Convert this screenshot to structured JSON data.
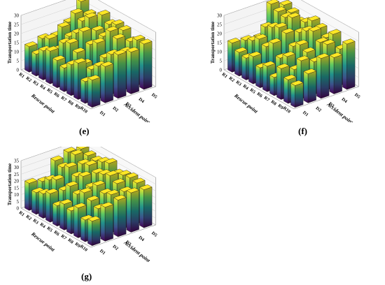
{
  "captions": [
    "(e)",
    "(f)",
    "(g)"
  ],
  "chart_data": [
    {
      "type": "bar3d",
      "panel": "e",
      "zlabel": "Transportation time",
      "xlabel": "Rescue point",
      "ylabel": "Accident point",
      "rescue_points": [
        "R1",
        "R2",
        "R3",
        "R4",
        "R5",
        "R6",
        "R7",
        "R8",
        "R9",
        "R10"
      ],
      "accident_points": [
        "D1",
        "D2",
        "D3",
        "D4",
        "D5"
      ],
      "zticks": [
        0,
        5,
        10,
        15,
        20,
        25,
        30
      ],
      "zlim": [
        0,
        30
      ],
      "values": [
        [
          14,
          16,
          15,
          20,
          29
        ],
        [
          12,
          18,
          22,
          27,
          24
        ],
        [
          16,
          14,
          19,
          25,
          22
        ],
        [
          18,
          20,
          23,
          29,
          28
        ],
        [
          15,
          22,
          26,
          24,
          25
        ],
        [
          13,
          19,
          21,
          23,
          27
        ],
        [
          17,
          15,
          24,
          28,
          26
        ],
        [
          20,
          14,
          18,
          26,
          22
        ],
        [
          12,
          18,
          22,
          21,
          25
        ],
        [
          15,
          20,
          24,
          23,
          25
        ]
      ],
      "colormap": [
        "#440154",
        "#3b528b",
        "#21918c",
        "#5ec962",
        "#fde725"
      ]
    },
    {
      "type": "bar3d",
      "panel": "f",
      "zlabel": "Transportation time",
      "xlabel": "Rescue point",
      "ylabel": "Accident point",
      "rescue_points": [
        "R1",
        "R2",
        "R3",
        "R4",
        "R5",
        "R6",
        "R7",
        "R8",
        "R9",
        "R10"
      ],
      "accident_points": [
        "D1",
        "D2",
        "D3",
        "D4",
        "D5"
      ],
      "zticks": [
        0,
        5,
        10,
        15,
        20,
        25,
        30
      ],
      "zlim": [
        0,
        30
      ],
      "values": [
        [
          16,
          15,
          14,
          30,
          27
        ],
        [
          13,
          17,
          22,
          28,
          25
        ],
        [
          12,
          20,
          24,
          27,
          22
        ],
        [
          15,
          18,
          26,
          29,
          24
        ],
        [
          11,
          22,
          25,
          23,
          27
        ],
        [
          14,
          16,
          20,
          26,
          25
        ],
        [
          10,
          19,
          23,
          28,
          22
        ],
        [
          17,
          14,
          21,
          24,
          26
        ],
        [
          13,
          21,
          18,
          25,
          20
        ],
        [
          12,
          16,
          22,
          20,
          25
        ]
      ],
      "colormap": [
        "#440154",
        "#3b528b",
        "#21918c",
        "#5ec962",
        "#fde725"
      ]
    },
    {
      "type": "bar3d",
      "panel": "g",
      "zlabel": "Transportation time",
      "xlabel": "Rescue point",
      "ylabel": "Accident point",
      "rescue_points": [
        "R1",
        "R2",
        "R3",
        "R4",
        "R5",
        "R6",
        "R7",
        "R8",
        "R9",
        "R10"
      ],
      "accident_points": [
        "D1",
        "D2",
        "D3",
        "D4",
        "D5"
      ],
      "zticks": [
        0,
        5,
        10,
        15,
        20,
        25,
        30,
        35
      ],
      "zlim": [
        0,
        35
      ],
      "values": [
        [
          20,
          18,
          30,
          33,
          32
        ],
        [
          16,
          22,
          28,
          34,
          30
        ],
        [
          18,
          25,
          31,
          30,
          29
        ],
        [
          21,
          20,
          27,
          32,
          31
        ],
        [
          15,
          26,
          30,
          29,
          33
        ],
        [
          19,
          23,
          25,
          31,
          28
        ],
        [
          17,
          27,
          29,
          33,
          30
        ],
        [
          22,
          24,
          26,
          30,
          31
        ],
        [
          16,
          21,
          28,
          27,
          30
        ],
        [
          18,
          25,
          27,
          29,
          28
        ]
      ],
      "colormap": [
        "#440154",
        "#3b528b",
        "#21918c",
        "#5ec962",
        "#fde725"
      ]
    }
  ]
}
